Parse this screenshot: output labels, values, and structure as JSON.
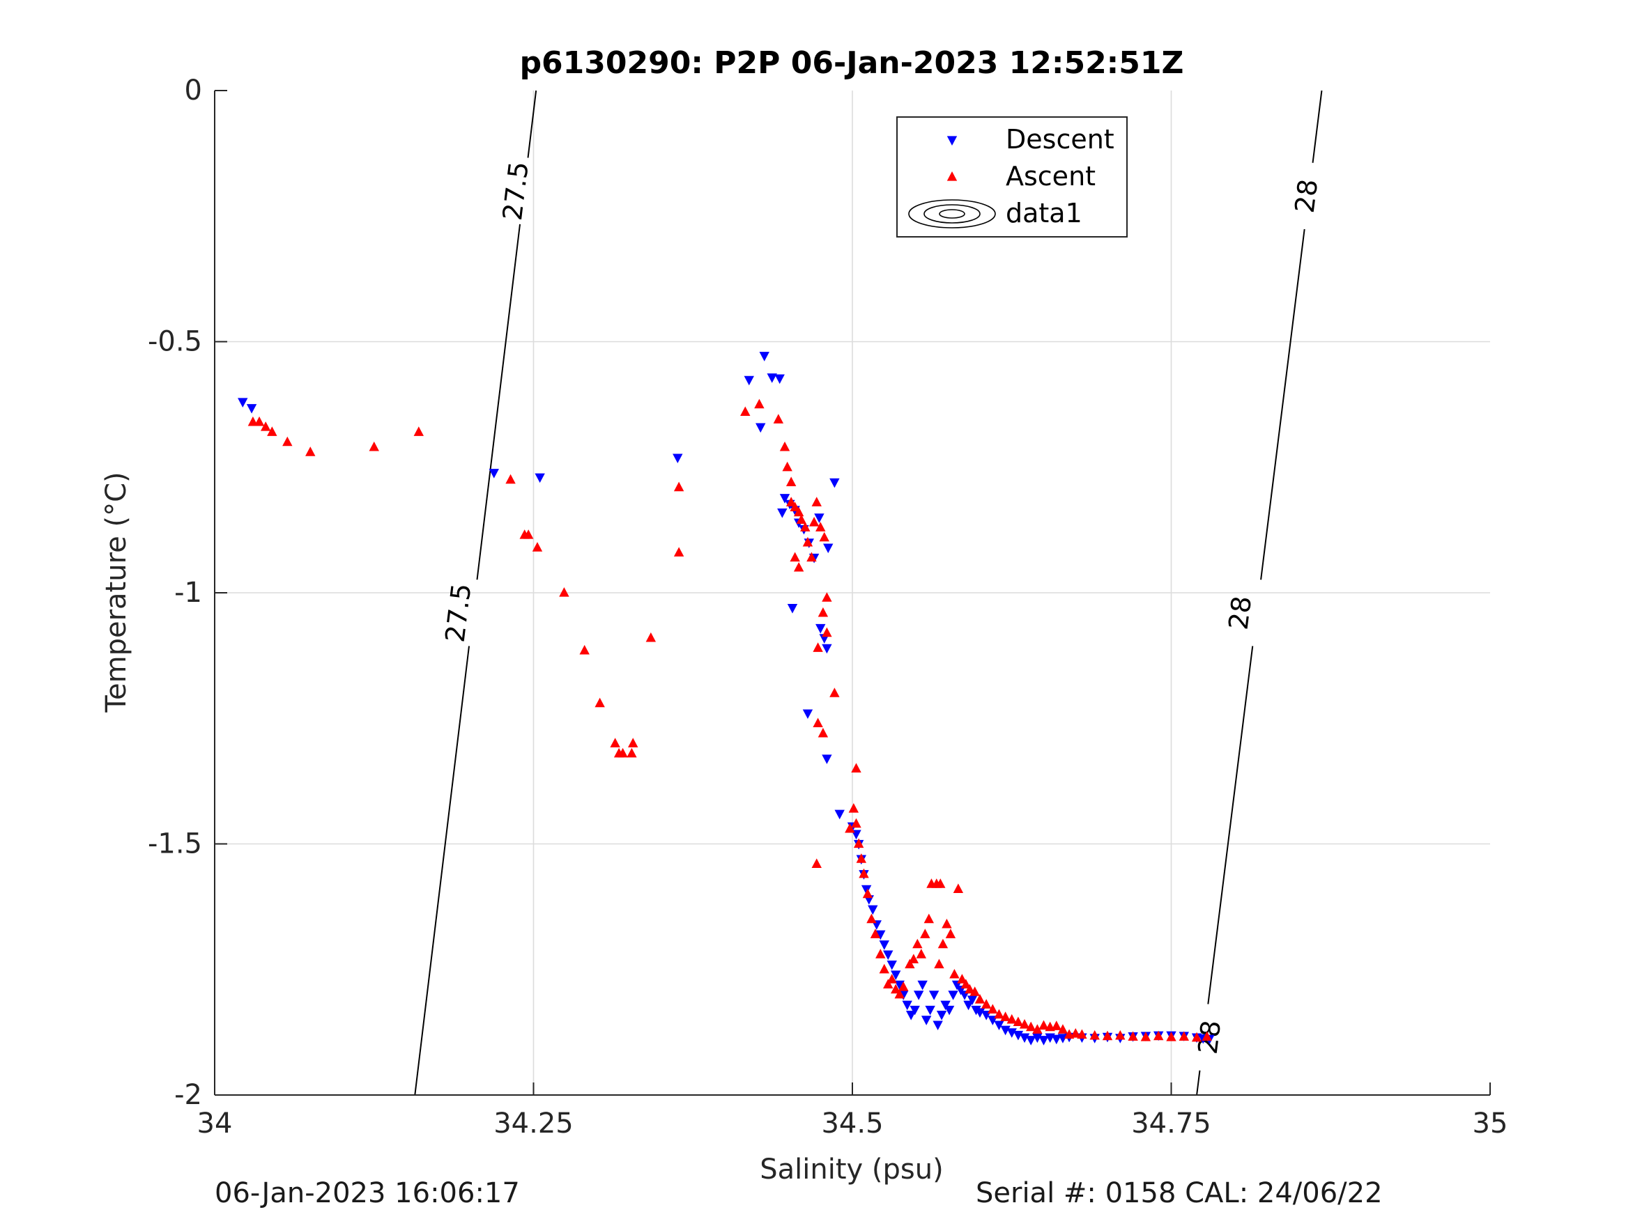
{
  "colors": {
    "descent": "#0000ff",
    "ascent": "#ff0000",
    "axis": "#262626",
    "grid": "#dcdcdc",
    "contour": "#000000"
  },
  "footer": {
    "left": "06-Jan-2023 16:06:17",
    "right": "Serial #: 0158  CAL: 24/06/22"
  },
  "chart_data": {
    "type": "scatter",
    "title": "p6130290: P2P 06-Jan-2023 12:52:51Z",
    "xlabel": "Salinity (psu)",
    "ylabel": "Temperature (°C)",
    "xlim": [
      34,
      35
    ],
    "ylim": [
      -2,
      0
    ],
    "xticks": [
      34,
      34.25,
      34.5,
      34.75,
      35
    ],
    "xtick_labels": [
      "34",
      "34.25",
      "34.5",
      "34.75",
      "35"
    ],
    "yticks": [
      0,
      -0.5,
      -1,
      -1.5,
      -2
    ],
    "ytick_labels": [
      "0",
      "-0.5",
      "-1",
      "-1.5",
      "-2"
    ],
    "grid": true,
    "legend": {
      "placement": "top-center",
      "entries": [
        "Descent",
        "Ascent",
        "data1"
      ]
    },
    "series": [
      {
        "name": "Descent",
        "marker": "triangle-down",
        "color": "#0000ff",
        "points": [
          [
            34.022,
            -0.62
          ],
          [
            34.029,
            -0.632
          ],
          [
            34.219,
            -0.761
          ],
          [
            34.255,
            -0.77
          ],
          [
            34.363,
            -0.731
          ],
          [
            34.419,
            -0.576
          ],
          [
            34.431,
            -0.528
          ],
          [
            34.437,
            -0.571
          ],
          [
            34.443,
            -0.573
          ],
          [
            34.428,
            -0.67
          ],
          [
            34.447,
            -0.811
          ],
          [
            34.451,
            -0.823
          ],
          [
            34.455,
            -0.835
          ],
          [
            34.458,
            -0.86
          ],
          [
            34.462,
            -0.873
          ],
          [
            34.466,
            -0.9
          ],
          [
            34.47,
            -0.93
          ],
          [
            34.474,
            -0.85
          ],
          [
            34.481,
            -0.91
          ],
          [
            34.486,
            -0.78
          ],
          [
            34.445,
            -0.84
          ],
          [
            34.453,
            -1.03
          ],
          [
            34.475,
            -1.07
          ],
          [
            34.478,
            -1.09
          ],
          [
            34.48,
            -1.11
          ],
          [
            34.465,
            -1.24
          ],
          [
            34.48,
            -1.33
          ],
          [
            34.49,
            -1.44
          ],
          [
            34.5,
            -1.465
          ],
          [
            34.503,
            -1.48
          ],
          [
            34.505,
            -1.5
          ],
          [
            34.507,
            -1.53
          ],
          [
            34.509,
            -1.56
          ],
          [
            34.511,
            -1.59
          ],
          [
            34.513,
            -1.61
          ],
          [
            34.516,
            -1.63
          ],
          [
            34.519,
            -1.66
          ],
          [
            34.522,
            -1.68
          ],
          [
            34.525,
            -1.7
          ],
          [
            34.528,
            -1.72
          ],
          [
            34.531,
            -1.74
          ],
          [
            34.534,
            -1.76
          ],
          [
            34.537,
            -1.78
          ],
          [
            34.54,
            -1.8
          ],
          [
            34.543,
            -1.82
          ],
          [
            34.546,
            -1.84
          ],
          [
            34.549,
            -1.83
          ],
          [
            34.552,
            -1.8
          ],
          [
            34.555,
            -1.78
          ],
          [
            34.558,
            -1.85
          ],
          [
            34.561,
            -1.83
          ],
          [
            34.564,
            -1.8
          ],
          [
            34.567,
            -1.86
          ],
          [
            34.57,
            -1.84
          ],
          [
            34.573,
            -1.82
          ],
          [
            34.576,
            -1.83
          ],
          [
            34.579,
            -1.8
          ],
          [
            34.582,
            -1.78
          ],
          [
            34.585,
            -1.79
          ],
          [
            34.588,
            -1.8
          ],
          [
            34.591,
            -1.82
          ],
          [
            34.594,
            -1.81
          ],
          [
            34.597,
            -1.83
          ],
          [
            34.6,
            -1.835
          ],
          [
            34.605,
            -1.84
          ],
          [
            34.61,
            -1.85
          ],
          [
            34.615,
            -1.86
          ],
          [
            34.62,
            -1.87
          ],
          [
            34.625,
            -1.875
          ],
          [
            34.63,
            -1.88
          ],
          [
            34.635,
            -1.885
          ],
          [
            34.64,
            -1.89
          ],
          [
            34.645,
            -1.885
          ],
          [
            34.65,
            -1.89
          ],
          [
            34.655,
            -1.885
          ],
          [
            34.66,
            -1.888
          ],
          [
            34.665,
            -1.886
          ],
          [
            34.67,
            -1.884
          ],
          [
            34.68,
            -1.885
          ],
          [
            34.69,
            -1.886
          ],
          [
            34.7,
            -1.884
          ],
          [
            34.71,
            -1.886
          ],
          [
            34.72,
            -1.883
          ],
          [
            34.73,
            -1.882
          ],
          [
            34.74,
            -1.881
          ],
          [
            34.75,
            -1.881
          ],
          [
            34.76,
            -1.882
          ],
          [
            34.77,
            -1.885
          ],
          [
            34.775,
            -1.887
          ],
          [
            34.78,
            -1.888
          ]
        ]
      },
      {
        "name": "Ascent",
        "marker": "triangle-up",
        "color": "#ff0000",
        "points": [
          [
            34.03,
            -0.66
          ],
          [
            34.035,
            -0.66
          ],
          [
            34.04,
            -0.67
          ],
          [
            34.045,
            -0.68
          ],
          [
            34.057,
            -0.7
          ],
          [
            34.075,
            -0.72
          ],
          [
            34.125,
            -0.71
          ],
          [
            34.16,
            -0.68
          ],
          [
            34.232,
            -0.775
          ],
          [
            34.243,
            -0.885
          ],
          [
            34.246,
            -0.885
          ],
          [
            34.253,
            -0.91
          ],
          [
            34.274,
            -1.0
          ],
          [
            34.29,
            -1.115
          ],
          [
            34.302,
            -1.22
          ],
          [
            34.314,
            -1.3
          ],
          [
            34.317,
            -1.32
          ],
          [
            34.32,
            -1.32
          ],
          [
            34.327,
            -1.32
          ],
          [
            34.328,
            -1.3
          ],
          [
            34.342,
            -1.09
          ],
          [
            34.364,
            -0.79
          ],
          [
            34.364,
            -0.92
          ],
          [
            34.416,
            -0.64
          ],
          [
            34.427,
            -0.625
          ],
          [
            34.442,
            -0.655
          ],
          [
            34.447,
            -0.71
          ],
          [
            34.449,
            -0.75
          ],
          [
            34.452,
            -0.78
          ],
          [
            34.452,
            -0.82
          ],
          [
            34.455,
            -0.83
          ],
          [
            34.458,
            -0.84
          ],
          [
            34.46,
            -0.855
          ],
          [
            34.463,
            -0.87
          ],
          [
            34.465,
            -0.9
          ],
          [
            34.468,
            -0.93
          ],
          [
            34.47,
            -0.86
          ],
          [
            34.472,
            -0.82
          ],
          [
            34.475,
            -0.87
          ],
          [
            34.478,
            -0.89
          ],
          [
            34.455,
            -0.93
          ],
          [
            34.458,
            -0.95
          ],
          [
            34.473,
            -1.11
          ],
          [
            34.477,
            -1.04
          ],
          [
            34.48,
            -1.01
          ],
          [
            34.48,
            -1.08
          ],
          [
            34.486,
            -1.2
          ],
          [
            34.473,
            -1.26
          ],
          [
            34.477,
            -1.28
          ],
          [
            34.503,
            -1.35
          ],
          [
            34.472,
            -1.54
          ],
          [
            34.498,
            -1.47
          ],
          [
            34.501,
            -1.43
          ],
          [
            34.503,
            -1.46
          ],
          [
            34.505,
            -1.5
          ],
          [
            34.507,
            -1.53
          ],
          [
            34.509,
            -1.56
          ],
          [
            34.512,
            -1.6
          ],
          [
            34.515,
            -1.65
          ],
          [
            34.518,
            -1.68
          ],
          [
            34.522,
            -1.72
          ],
          [
            34.525,
            -1.75
          ],
          [
            34.528,
            -1.78
          ],
          [
            34.531,
            -1.77
          ],
          [
            34.534,
            -1.79
          ],
          [
            34.537,
            -1.8
          ],
          [
            34.54,
            -1.785
          ],
          [
            34.545,
            -1.74
          ],
          [
            34.548,
            -1.73
          ],
          [
            34.551,
            -1.7
          ],
          [
            34.554,
            -1.72
          ],
          [
            34.557,
            -1.68
          ],
          [
            34.56,
            -1.65
          ],
          [
            34.562,
            -1.58
          ],
          [
            34.566,
            -1.58
          ],
          [
            34.569,
            -1.58
          ],
          [
            34.568,
            -1.74
          ],
          [
            34.571,
            -1.7
          ],
          [
            34.574,
            -1.66
          ],
          [
            34.577,
            -1.68
          ],
          [
            34.58,
            -1.76
          ],
          [
            34.583,
            -1.59
          ],
          [
            34.586,
            -1.77
          ],
          [
            34.589,
            -1.78
          ],
          [
            34.592,
            -1.79
          ],
          [
            34.596,
            -1.795
          ],
          [
            34.6,
            -1.81
          ],
          [
            34.605,
            -1.82
          ],
          [
            34.61,
            -1.83
          ],
          [
            34.615,
            -1.84
          ],
          [
            34.62,
            -1.845
          ],
          [
            34.625,
            -1.85
          ],
          [
            34.63,
            -1.855
          ],
          [
            34.635,
            -1.86
          ],
          [
            34.64,
            -1.865
          ],
          [
            34.645,
            -1.87
          ],
          [
            34.65,
            -1.862
          ],
          [
            34.655,
            -1.865
          ],
          [
            34.66,
            -1.863
          ],
          [
            34.665,
            -1.87
          ],
          [
            34.67,
            -1.88
          ],
          [
            34.675,
            -1.878
          ],
          [
            34.68,
            -1.88
          ],
          [
            34.69,
            -1.882
          ],
          [
            34.7,
            -1.883
          ],
          [
            34.71,
            -1.882
          ],
          [
            34.72,
            -1.884
          ],
          [
            34.73,
            -1.885
          ],
          [
            34.74,
            -1.883
          ],
          [
            34.75,
            -1.885
          ],
          [
            34.76,
            -1.884
          ],
          [
            34.77,
            -1.886
          ],
          [
            34.778,
            -1.884
          ]
        ]
      }
    ],
    "contours": [
      {
        "level": "27.5",
        "line": [
          [
            34.157,
            -2.0
          ],
          [
            34.252,
            0.0
          ]
        ],
        "label_positions": [
          [
            34.191,
            -1.04
          ],
          [
            34.236,
            -0.2
          ]
        ]
      },
      {
        "level": "28",
        "line": [
          [
            34.77,
            -2.0
          ],
          [
            34.868,
            0.0
          ]
        ],
        "label_positions": [
          [
            34.78,
            -1.885
          ],
          [
            34.804,
            -1.04
          ],
          [
            34.856,
            -0.21
          ]
        ]
      }
    ]
  }
}
